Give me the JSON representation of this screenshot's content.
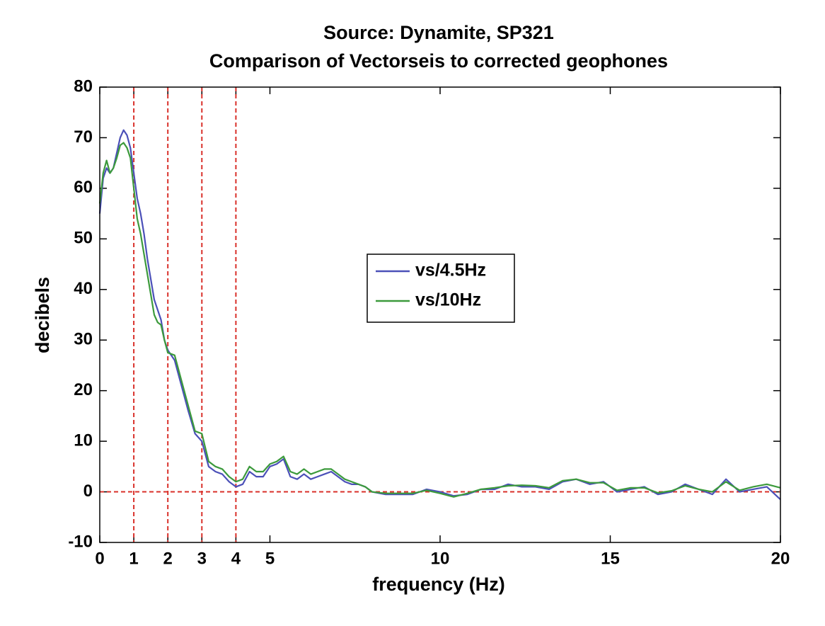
{
  "chart_data": {
    "type": "line",
    "title": "Source: Dynamite, SP321",
    "subtitle": "Comparison of Vectorseis to corrected geophones",
    "xlabel": "frequency (Hz)",
    "ylabel": "decibels",
    "xlim": [
      0,
      20
    ],
    "ylim": [
      -10,
      80
    ],
    "xticks": [
      0,
      1,
      2,
      3,
      4,
      5,
      10,
      15,
      20
    ],
    "yticks": [
      -10,
      0,
      10,
      20,
      30,
      40,
      50,
      60,
      70,
      80
    ],
    "legend": "center",
    "grid": false,
    "reference_lines": {
      "x": [
        1,
        2,
        3,
        4
      ],
      "y": [
        0
      ],
      "color": "#d9302a"
    },
    "x": [
      0,
      0.1,
      0.2,
      0.3,
      0.4,
      0.5,
      0.6,
      0.7,
      0.8,
      0.9,
      1.0,
      1.1,
      1.2,
      1.3,
      1.4,
      1.5,
      1.6,
      1.7,
      1.8,
      1.9,
      2.0,
      2.2,
      2.4,
      2.6,
      2.8,
      3.0,
      3.2,
      3.4,
      3.6,
      3.8,
      4.0,
      4.2,
      4.4,
      4.6,
      4.8,
      5.0,
      5.2,
      5.4,
      5.6,
      5.8,
      6.0,
      6.2,
      6.4,
      6.6,
      6.8,
      7.0,
      7.2,
      7.4,
      7.6,
      7.8,
      8.0,
      8.4,
      8.8,
      9.2,
      9.6,
      10.0,
      10.4,
      10.8,
      11.2,
      11.6,
      12.0,
      12.4,
      12.8,
      13.2,
      13.6,
      14.0,
      14.4,
      14.8,
      15.2,
      15.6,
      16.0,
      16.4,
      16.8,
      17.2,
      17.6,
      18.0,
      18.4,
      18.8,
      19.2,
      19.6,
      20.0
    ],
    "series": [
      {
        "name": "vs/4.5Hz",
        "color": "#4b50b8",
        "values": [
          55,
          62,
          64,
          63,
          64,
          67,
          70,
          71.5,
          70.5,
          68,
          63,
          58,
          55,
          51,
          46,
          42,
          38,
          36,
          34,
          30,
          28,
          26,
          21,
          16,
          11.5,
          10,
          5,
          4,
          3.5,
          2,
          1,
          1.5,
          4,
          3,
          3,
          5,
          5.5,
          6.5,
          3,
          2.5,
          3.5,
          2.5,
          3,
          3.5,
          4,
          3,
          2,
          1.5,
          1.5,
          1,
          0,
          -0.5,
          -0.5,
          -0.5,
          0.5,
          0,
          -0.8,
          -0.5,
          0.5,
          0.5,
          1.5,
          1,
          1,
          0.5,
          2,
          2.5,
          1.5,
          2,
          0,
          0.5,
          1,
          -0.5,
          0,
          1.5,
          0.5,
          -0.5,
          2.5,
          0,
          0.5,
          1,
          -1.5
        ]
      },
      {
        "name": "vs/10Hz",
        "color": "#3c9a3c",
        "values": [
          57,
          63,
          65.5,
          63,
          64,
          66,
          68.5,
          69,
          68,
          66,
          60,
          54,
          51,
          47,
          43,
          39,
          35,
          33.5,
          33,
          30,
          27.5,
          27,
          22,
          17,
          12,
          11.5,
          6,
          5,
          4.5,
          3,
          2,
          2.5,
          5,
          4,
          4,
          5.5,
          6,
          7,
          4,
          3.5,
          4.5,
          3.5,
          4,
          4.5,
          4.5,
          3.5,
          2.5,
          2,
          1.5,
          1,
          0,
          -0.3,
          -0.3,
          -0.3,
          0.3,
          -0.3,
          -1,
          -0.3,
          0.5,
          0.8,
          1.2,
          1.3,
          1.2,
          0.8,
          2.2,
          2.5,
          1.8,
          1.8,
          0.3,
          0.8,
          0.8,
          -0.2,
          0.2,
          1.2,
          0.5,
          0,
          2,
          0.3,
          1,
          1.5,
          0.8
        ]
      }
    ]
  }
}
